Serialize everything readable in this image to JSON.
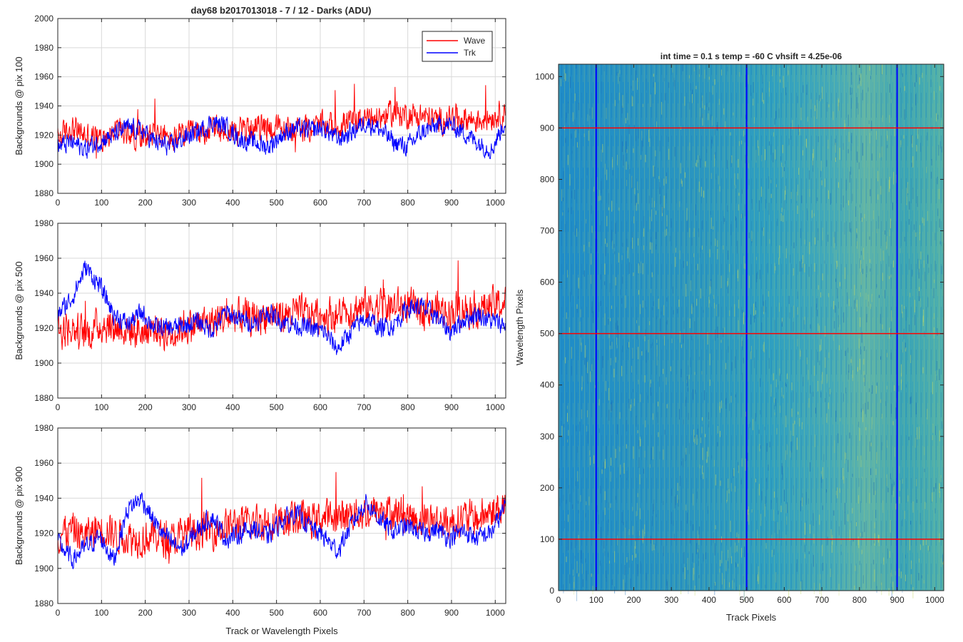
{
  "figure_title": "day68 b2017013018 - 7 / 12 - Darks (ADU)",
  "colors": {
    "wave": "#ff0000",
    "trk": "#0000ff",
    "heatmap_low": "#1e8fc4",
    "heatmap_high": "#b8d66a",
    "grid": "#d9d9d9"
  },
  "chart_data": [
    {
      "type": "line",
      "title": "day68 b2017013018 - 7 / 12 - Darks (ADU)",
      "xlabel": "",
      "ylabel": "Backgrounds @ pix 100",
      "xlim": [
        0,
        1024
      ],
      "ylim": [
        1880,
        2000
      ],
      "xticks": [
        0,
        100,
        200,
        300,
        400,
        500,
        600,
        700,
        800,
        900,
        1000
      ],
      "yticks": [
        1880,
        1900,
        1920,
        1940,
        1960,
        1980,
        2000
      ],
      "grid": true,
      "legend": {
        "position": "top-right",
        "entries": [
          "Wave",
          "Trk"
        ]
      },
      "series": [
        {
          "name": "Wave",
          "color": "#ff0000",
          "x": [
            0,
            32,
            64,
            96,
            128,
            160,
            192,
            224,
            256,
            288,
            320,
            352,
            384,
            416,
            448,
            480,
            512,
            544,
            576,
            608,
            640,
            672,
            704,
            736,
            768,
            800,
            832,
            864,
            896,
            928,
            960,
            992,
            1023
          ],
          "values": [
            1918,
            1925,
            1920,
            1917,
            1923,
            1921,
            1919,
            1922,
            1916,
            1920,
            1921,
            1924,
            1922,
            1923,
            1925,
            1926,
            1924,
            1923,
            1925,
            1927,
            1926,
            1930,
            1931,
            1932,
            1935,
            1934,
            1933,
            1930,
            1931,
            1932,
            1930,
            1933,
            1935
          ]
        },
        {
          "name": "Trk",
          "color": "#0000ff",
          "x": [
            0,
            32,
            64,
            96,
            128,
            160,
            192,
            224,
            256,
            288,
            320,
            352,
            384,
            416,
            448,
            480,
            512,
            544,
            576,
            608,
            640,
            672,
            704,
            736,
            768,
            800,
            832,
            864,
            896,
            928,
            960,
            992,
            1023
          ],
          "values": [
            1912,
            1915,
            1910,
            1916,
            1920,
            1925,
            1923,
            1915,
            1912,
            1918,
            1922,
            1929,
            1926,
            1917,
            1915,
            1912,
            1920,
            1925,
            1923,
            1925,
            1917,
            1922,
            1929,
            1924,
            1915,
            1912,
            1922,
            1926,
            1927,
            1922,
            1915,
            1910,
            1930
          ]
        }
      ]
    },
    {
      "type": "line",
      "xlabel": "",
      "ylabel": "Backgrounds @ pix 500",
      "xlim": [
        0,
        1024
      ],
      "ylim": [
        1880,
        1980
      ],
      "xticks": [
        0,
        100,
        200,
        300,
        400,
        500,
        600,
        700,
        800,
        900,
        1000
      ],
      "yticks": [
        1880,
        1900,
        1920,
        1940,
        1960,
        1980
      ],
      "grid": true,
      "series": [
        {
          "name": "Wave",
          "color": "#ff0000",
          "x": [
            0,
            32,
            64,
            96,
            128,
            160,
            192,
            224,
            256,
            288,
            320,
            352,
            384,
            416,
            448,
            480,
            512,
            544,
            576,
            608,
            640,
            672,
            704,
            736,
            768,
            800,
            832,
            864,
            896,
            928,
            960,
            992,
            1023
          ],
          "values": [
            1918,
            1920,
            1916,
            1922,
            1921,
            1919,
            1918,
            1920,
            1916,
            1921,
            1922,
            1924,
            1926,
            1927,
            1925,
            1928,
            1927,
            1929,
            1927,
            1928,
            1927,
            1931,
            1932,
            1933,
            1932,
            1933,
            1930,
            1931,
            1930,
            1932,
            1931,
            1933,
            1934
          ]
        },
        {
          "name": "Trk",
          "color": "#0000ff",
          "x": [
            0,
            32,
            64,
            96,
            128,
            160,
            192,
            224,
            256,
            288,
            320,
            352,
            384,
            416,
            448,
            480,
            512,
            544,
            576,
            608,
            640,
            672,
            704,
            736,
            768,
            800,
            832,
            864,
            896,
            928,
            960,
            992,
            1023
          ],
          "values": [
            1928,
            1937,
            1955,
            1944,
            1928,
            1922,
            1929,
            1920,
            1920,
            1921,
            1924,
            1919,
            1929,
            1925,
            1923,
            1929,
            1924,
            1922,
            1920,
            1918,
            1908,
            1919,
            1926,
            1920,
            1922,
            1932,
            1932,
            1927,
            1918,
            1925,
            1928,
            1924,
            1922
          ]
        }
      ]
    },
    {
      "type": "line",
      "xlabel": "Track or Wavelength Pixels",
      "ylabel": "Backgrounds @ pix 900",
      "xlim": [
        0,
        1024
      ],
      "ylim": [
        1880,
        1980
      ],
      "xticks": [
        0,
        100,
        200,
        300,
        400,
        500,
        600,
        700,
        800,
        900,
        1000
      ],
      "yticks": [
        1880,
        1900,
        1920,
        1940,
        1960,
        1980
      ],
      "grid": true,
      "series": [
        {
          "name": "Wave",
          "color": "#ff0000",
          "x": [
            0,
            32,
            64,
            96,
            128,
            160,
            192,
            224,
            256,
            288,
            320,
            352,
            384,
            416,
            448,
            480,
            512,
            544,
            576,
            608,
            640,
            672,
            704,
            736,
            768,
            800,
            832,
            864,
            896,
            928,
            960,
            992,
            1023
          ],
          "values": [
            1919,
            1922,
            1918,
            1924,
            1920,
            1918,
            1917,
            1919,
            1915,
            1920,
            1921,
            1922,
            1924,
            1925,
            1926,
            1927,
            1928,
            1929,
            1927,
            1929,
            1928,
            1932,
            1931,
            1933,
            1932,
            1930,
            1928,
            1927,
            1926,
            1929,
            1928,
            1933,
            1935
          ]
        },
        {
          "name": "Trk",
          "color": "#0000ff",
          "x": [
            0,
            32,
            64,
            96,
            128,
            160,
            192,
            224,
            256,
            288,
            320,
            352,
            384,
            416,
            448,
            480,
            512,
            544,
            576,
            608,
            640,
            672,
            704,
            736,
            768,
            800,
            832,
            864,
            896,
            928,
            960,
            992,
            1023
          ],
          "values": [
            1915,
            1905,
            1912,
            1918,
            1905,
            1934,
            1940,
            1925,
            1915,
            1911,
            1922,
            1930,
            1917,
            1920,
            1923,
            1918,
            1927,
            1932,
            1924,
            1918,
            1910,
            1925,
            1938,
            1928,
            1921,
            1924,
            1920,
            1922,
            1918,
            1921,
            1917,
            1921,
            1935
          ]
        }
      ]
    },
    {
      "type": "heatmap",
      "title": "int time = 0.1 s   temp = -60 C   vhsift = 4.25e-06",
      "xlabel": "Track Pixels",
      "ylabel": "Wavelength Pixels",
      "xlim": [
        0,
        1024
      ],
      "ylim": [
        0,
        1024
      ],
      "xticks": [
        0,
        100,
        200,
        300,
        400,
        500,
        600,
        700,
        800,
        900,
        1000
      ],
      "yticks": [
        0,
        100,
        200,
        300,
        400,
        500,
        600,
        700,
        800,
        900,
        1000
      ],
      "vertical_markers": {
        "color": "#0000ff",
        "x": [
          100,
          500,
          900
        ]
      },
      "horizontal_markers": {
        "color": "#ff0000",
        "y": [
          100,
          500,
          900
        ]
      }
    }
  ]
}
